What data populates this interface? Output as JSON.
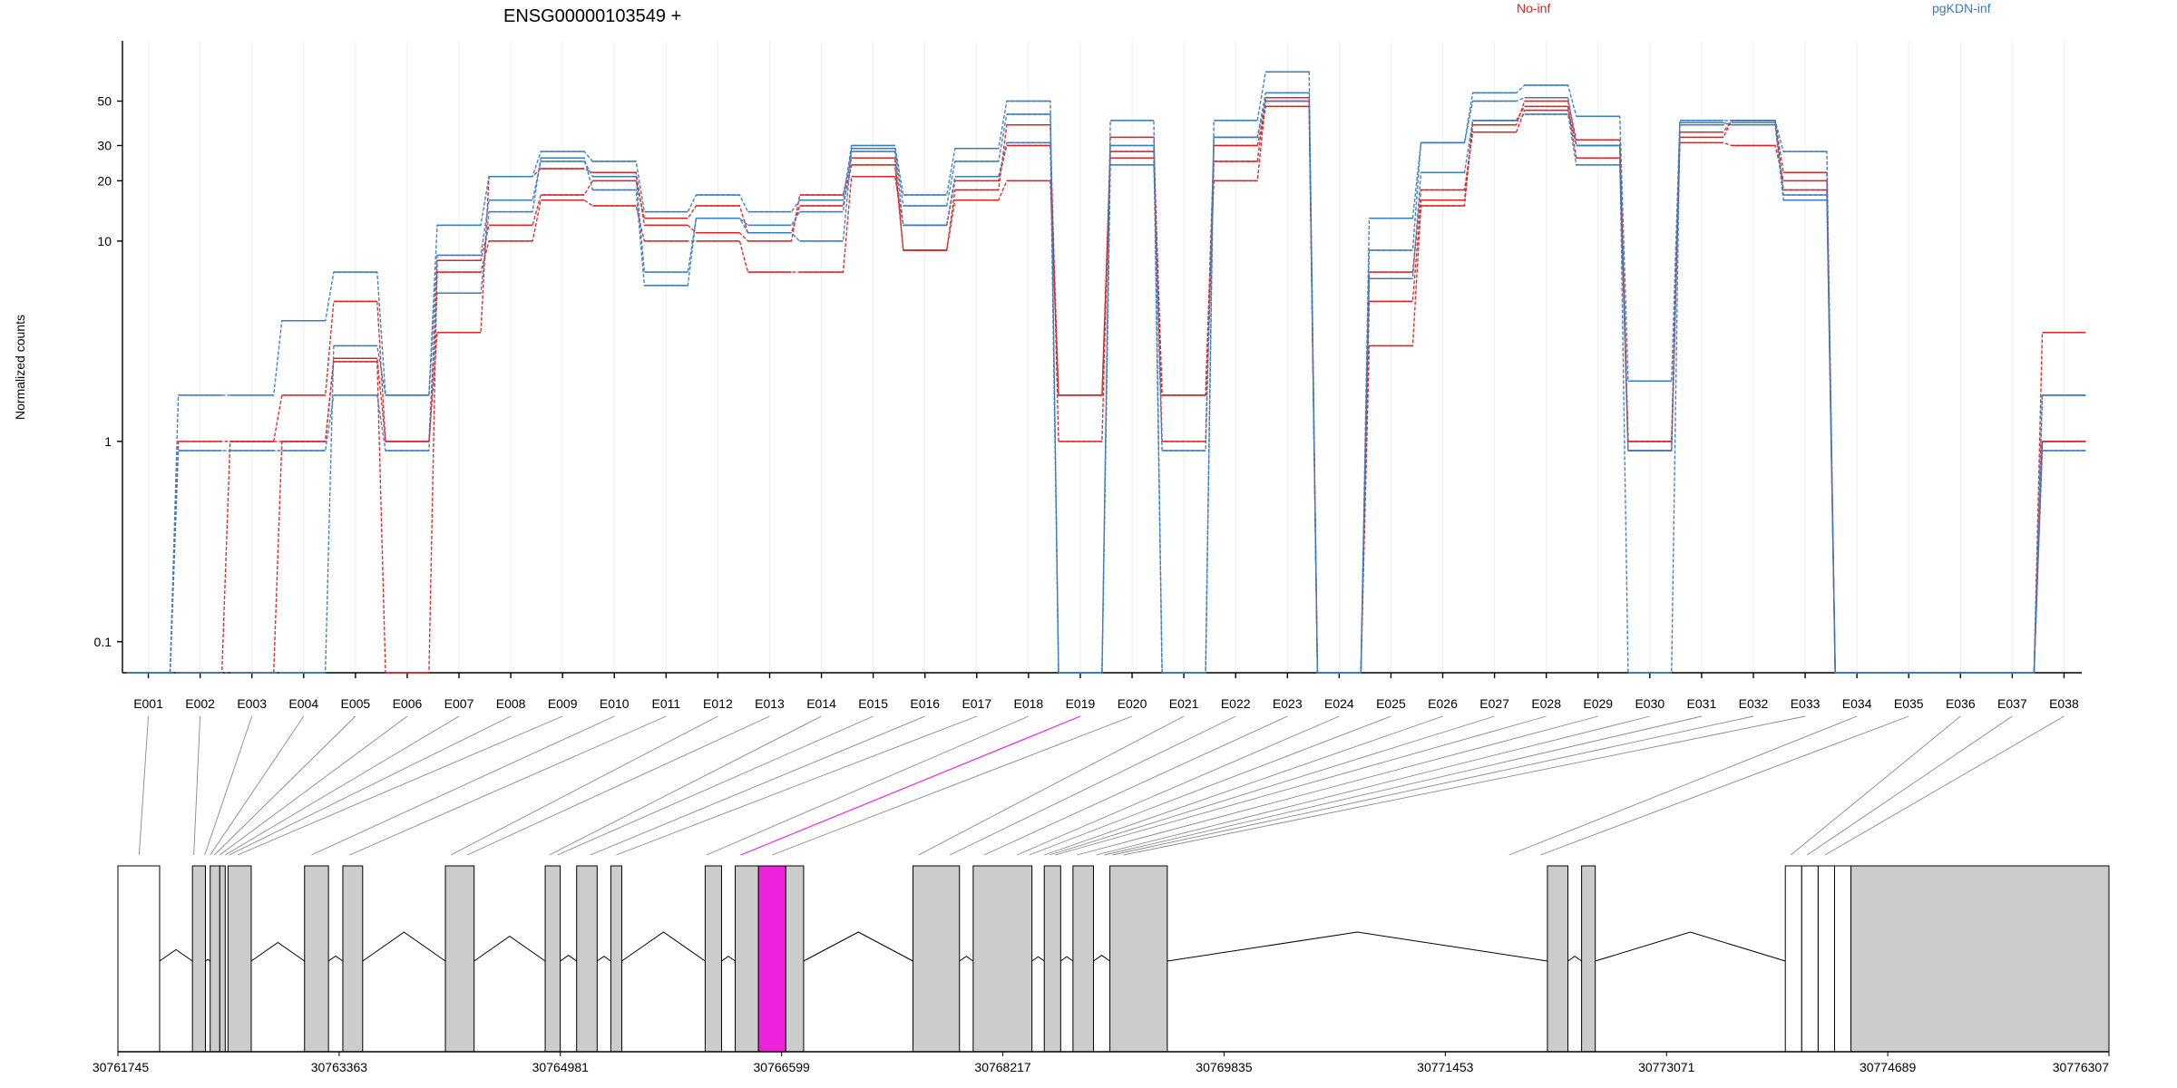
{
  "chart_data": {
    "type": "line",
    "title": "ENSG00000103549 +",
    "ylabel": "Normalized counts",
    "yscale": "log",
    "ylim": [
      0.07,
      100
    ],
    "yticks": [
      0.1,
      1,
      10,
      20,
      30,
      50
    ],
    "ytick_labels": [
      "0.1",
      "1",
      "10",
      "20",
      "30",
      "50"
    ],
    "legend_placement": "top",
    "colors": {
      "No-inf": "#d62728",
      "pgKDN-inf": "#3a7dbf",
      "highlight": "#ee22dd",
      "exon_fill": "#cccccc"
    },
    "categories": [
      "E001",
      "E002",
      "E003",
      "E004",
      "E005",
      "E006",
      "E007",
      "E008",
      "E009",
      "E010",
      "E011",
      "E012",
      "E013",
      "E014",
      "E015",
      "E016",
      "E017",
      "E018",
      "E019",
      "E020",
      "E021",
      "E022",
      "E023",
      "E024",
      "E025",
      "E026",
      "E027",
      "E028",
      "E029",
      "E030",
      "E031",
      "E032",
      "E033",
      "E034",
      "E035",
      "E036",
      "E037",
      "E038"
    ],
    "highlight_category": "E019",
    "groups": [
      {
        "name": "No-inf",
        "samples": [
          [
            0.07,
            0.07,
            0.07,
            1.0,
            2.5,
            0.07,
            8.0,
            12.0,
            17.0,
            20.0,
            13.0,
            15.0,
            11.0,
            15.0,
            24.0,
            9.0,
            18.0,
            38.0,
            1.0,
            33.0,
            1.0,
            25.0,
            52.0,
            0.07,
            5.0,
            16.0,
            38.0,
            50.0,
            32.0,
            1.0,
            35.0,
            40.0,
            22.0,
            0.07,
            0.07,
            0.07,
            0.07,
            3.5
          ],
          [
            0.07,
            1.0,
            1.0,
            1.7,
            5.0,
            1.0,
            3.5,
            21.0,
            23.0,
            22.0,
            12.0,
            11.0,
            10.0,
            17.0,
            26.0,
            9.0,
            16.0,
            20.0,
            1.7,
            28.0,
            1.7,
            30.0,
            47.0,
            0.07,
            7.0,
            18.0,
            35.0,
            45.0,
            30.0,
            0.9,
            31.0,
            30.0,
            20.0,
            0.07,
            0.07,
            0.07,
            0.07,
            1.0
          ],
          [
            0.07,
            0.07,
            1.0,
            1.0,
            2.6,
            1.0,
            7.0,
            10.0,
            16.0,
            15.0,
            10.0,
            10.0,
            7.0,
            7.0,
            21.0,
            12.0,
            20.0,
            30.0,
            1.7,
            26.0,
            1.7,
            20.0,
            50.0,
            0.07,
            3.0,
            15.0,
            40.0,
            47.0,
            26.0,
            1.0,
            33.0,
            40.0,
            18.0,
            0.07,
            0.07,
            0.07,
            0.07,
            1.0
          ]
        ]
      },
      {
        "name": "pgKDN-inf",
        "samples": [
          [
            0.07,
            1.7,
            1.7,
            4.0,
            7.0,
            1.7,
            12.0,
            21.0,
            28.0,
            25.0,
            14.0,
            17.0,
            14.0,
            16.0,
            30.0,
            17.0,
            29.0,
            50.0,
            0.07,
            40.0,
            0.07,
            40.0,
            70.0,
            0.07,
            13.0,
            31.0,
            55.0,
            60.0,
            42.0,
            2.0,
            40.0,
            40.0,
            28.0,
            0.07,
            0.07,
            0.07,
            0.07,
            1.7
          ],
          [
            0.07,
            0.9,
            0.9,
            0.9,
            1.7,
            0.9,
            5.5,
            14.0,
            26.0,
            18.0,
            6.0,
            13.0,
            11.0,
            10.0,
            28.0,
            12.0,
            21.0,
            31.0,
            0.07,
            24.0,
            0.9,
            33.0,
            50.0,
            0.07,
            6.5,
            22.0,
            40.0,
            43.0,
            24.0,
            0.9,
            39.0,
            38.0,
            16.0,
            0.07,
            0.07,
            0.07,
            0.07,
            0.9
          ],
          [
            0.07,
            0.07,
            0.07,
            0.07,
            3.0,
            1.7,
            8.5,
            16.0,
            25.0,
            21.0,
            7.0,
            13.0,
            12.0,
            14.0,
            29.0,
            15.0,
            25.0,
            43.0,
            0.07,
            30.0,
            0.07,
            33.0,
            55.0,
            0.07,
            9.0,
            31.0,
            50.0,
            52.0,
            30.0,
            0.07,
            38.0,
            39.0,
            17.0,
            0.07,
            0.07,
            0.07,
            0.07,
            1.7
          ]
        ]
      }
    ],
    "coordinate_ticks": [
      "30761745",
      "30763363",
      "30764981",
      "30766599",
      "30768217",
      "30769835",
      "30771453",
      "30773071",
      "30774689",
      "30776307"
    ],
    "gene_model": {
      "x_range": [
        30761745,
        30776307
      ],
      "transcripts": [
        {
          "start": 30761745,
          "end": 30762050,
          "type": "utr"
        },
        {
          "start": 30762290,
          "end": 30762385,
          "type": "exon"
        },
        {
          "start": 30762420,
          "end": 30762490,
          "type": "exon"
        },
        {
          "start": 30762490,
          "end": 30762530,
          "type": "exon"
        },
        {
          "start": 30762550,
          "end": 30762720,
          "type": "exon"
        },
        {
          "start": 30763110,
          "end": 30763285,
          "type": "exon"
        },
        {
          "start": 30763390,
          "end": 30763535,
          "type": "exon"
        },
        {
          "start": 30764140,
          "end": 30764350,
          "type": "exon"
        },
        {
          "start": 30764870,
          "end": 30764980,
          "type": "exon"
        },
        {
          "start": 30765100,
          "end": 30765250,
          "type": "exon"
        },
        {
          "start": 30765350,
          "end": 30765430,
          "type": "exon"
        },
        {
          "start": 30766040,
          "end": 30766160,
          "type": "exon"
        },
        {
          "start": 30766260,
          "end": 30766430,
          "type": "exon"
        },
        {
          "start": 30766430,
          "end": 30766630,
          "type": "highlight"
        },
        {
          "start": 30766630,
          "end": 30766760,
          "type": "exon"
        },
        {
          "start": 30767560,
          "end": 30767900,
          "type": "exon"
        },
        {
          "start": 30768000,
          "end": 30768430,
          "type": "exon"
        },
        {
          "start": 30768520,
          "end": 30768640,
          "type": "exon"
        },
        {
          "start": 30768730,
          "end": 30768880,
          "type": "exon"
        },
        {
          "start": 30769000,
          "end": 30769420,
          "type": "exon"
        },
        {
          "start": 30772200,
          "end": 30772350,
          "type": "exon"
        },
        {
          "start": 30772450,
          "end": 30772550,
          "type": "exon"
        },
        {
          "start": 30773940,
          "end": 30774060,
          "type": "utr"
        },
        {
          "start": 30774060,
          "end": 30774180,
          "type": "utr"
        },
        {
          "start": 30774180,
          "end": 30774300,
          "type": "utr"
        },
        {
          "start": 30774300,
          "end": 30774420,
          "type": "utr"
        },
        {
          "start": 30774420,
          "end": 30776307,
          "type": "exon"
        }
      ],
      "exon_anchor_positions": [
        30761900,
        30762300,
        30762380,
        30762420,
        30762450,
        30762490,
        30762530,
        30762560,
        30762620,
        30763160,
        30763440,
        30764180,
        30764300,
        30764900,
        30764960,
        30765200,
        30765390,
        30766050,
        30766300,
        30766530,
        30767600,
        30767830,
        30768080,
        30768320,
        30768410,
        30768520,
        30768560,
        30768600,
        30768760,
        30768900,
        30768960,
        30769020,
        30769100,
        30771920,
        30772150,
        30773980,
        30774100,
        30774230,
        30774350,
        30775320
      ]
    }
  }
}
